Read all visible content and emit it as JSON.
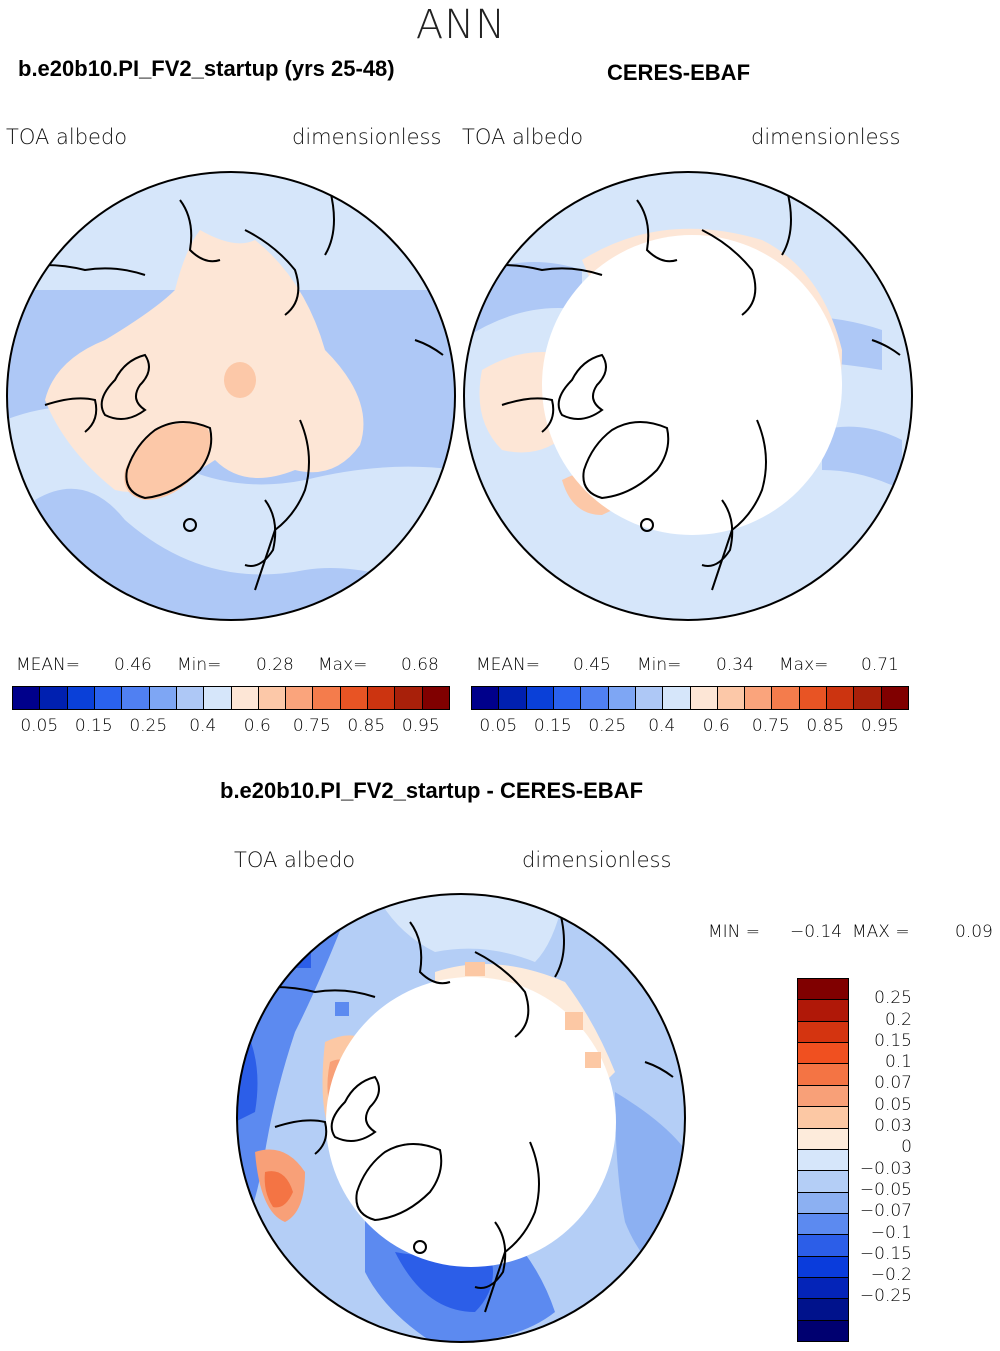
{
  "season": "ANN",
  "panels": [
    {
      "case_title": "b.e20b10.PI_FV2_startup (yrs 25-48)",
      "field_left": "TOA albedo",
      "field_right": "dimensionless",
      "mean_label": "MEAN=",
      "mean_value": "0.46",
      "min_label": "Min=",
      "min_value": "0.28",
      "max_label": "Max=",
      "max_value": "0.68"
    },
    {
      "case_title": "CERES-EBAF",
      "field_left": "TOA albedo",
      "field_right": "dimensionless",
      "mean_label": "MEAN=",
      "mean_value": "0.45",
      "min_label": "Min=",
      "min_value": "0.34",
      "max_label": "Max=",
      "max_value": "0.71"
    }
  ],
  "colorbar": {
    "colors": [
      "#00008b",
      "#0020b0",
      "#0a40d8",
      "#2a62ee",
      "#5080f2",
      "#7ea6f4",
      "#aec8f6",
      "#d6e6fa",
      "#fde6d6",
      "#fcc8a8",
      "#faa47c",
      "#f47c4c",
      "#e85424",
      "#cc3410",
      "#a8200a",
      "#800000"
    ],
    "tick_labels": [
      "0.05",
      "0.15",
      "0.25",
      "0.4",
      "0.6",
      "0.75",
      "0.85",
      "0.95"
    ]
  },
  "diff": {
    "title": "b.e20b10.PI_FV2_startup - CERES-EBAF",
    "field_left": "TOA albedo",
    "field_right": "dimensionless",
    "min_label": "MIN =",
    "min_value": "−0.14",
    "max_label": "MAX =",
    "max_value": "0.09",
    "colors": [
      "#800000",
      "#b01808",
      "#d43410",
      "#f05020",
      "#f47444",
      "#f8a078",
      "#fcc8a4",
      "#fdebdb",
      "#d6e6fa",
      "#b4cef6",
      "#8cb0f2",
      "#5c8af0",
      "#2c5ee8",
      "#0a3cdc",
      "#0424b8",
      "#00128c",
      "#000070"
    ],
    "tick_labels": [
      "0.25",
      "0.2",
      "0.15",
      "0.1",
      "0.07",
      "0.05",
      "0.03",
      "0",
      "−0.03",
      "−0.05",
      "−0.07",
      "−0.1",
      "−0.15",
      "−0.2",
      "−0.25"
    ]
  }
}
